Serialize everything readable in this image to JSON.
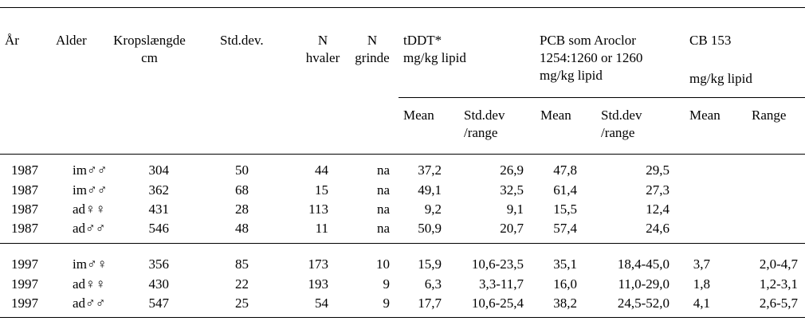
{
  "header": {
    "year": "År",
    "age": "Alder",
    "body_length_line1": "Kropslængde",
    "body_length_line2": "cm",
    "std_dev": "Std.dev.",
    "n_whales_line1": "N",
    "n_whales_line2": "hvaler",
    "n_pods_line1": "N",
    "n_pods_line2": "grinde",
    "tddt_line1": "tDDT*",
    "tddt_line2": "mg/kg lipid",
    "pcb_line1": "PCB som Aroclor",
    "pcb_line2": "1254:1260 or 1260",
    "pcb_line3": "mg/kg lipid",
    "cb153_line1": "CB 153",
    "cb153_line2": "mg/kg lipid"
  },
  "subheader": {
    "tddt_mean": "Mean",
    "tddt_sd_line1": "Std.dev",
    "tddt_sd_line2": "/range",
    "pcb_mean": "Mean",
    "pcb_sd_line1": "Std.dev",
    "pcb_sd_line2": "/range",
    "cb_mean": "Mean",
    "cb_range": "Range"
  },
  "rows": [
    {
      "year": "1987",
      "age": "im♂♂",
      "length": "304",
      "sd": "50",
      "n_whales": "44",
      "n_pods": "na",
      "tddt_mean": "37,2",
      "tddt_sd": "26,9",
      "pcb_mean": "47,8",
      "pcb_sd": "29,5",
      "cb_mean": "",
      "cb_range": ""
    },
    {
      "year": "1987",
      "age": "im♂♂",
      "length": "362",
      "sd": "68",
      "n_whales": "15",
      "n_pods": "na",
      "tddt_mean": "49,1",
      "tddt_sd": "32,5",
      "pcb_mean": "61,4",
      "pcb_sd": "27,3",
      "cb_mean": "",
      "cb_range": ""
    },
    {
      "year": "1987",
      "age": "ad♀♀",
      "length": "431",
      "sd": "28",
      "n_whales": "113",
      "n_pods": "na",
      "tddt_mean": "9,2",
      "tddt_sd": "9,1",
      "pcb_mean": "15,5",
      "pcb_sd": "12,4",
      "cb_mean": "",
      "cb_range": ""
    },
    {
      "year": "1987",
      "age": "ad♂♂",
      "length": "546",
      "sd": "48",
      "n_whales": "11",
      "n_pods": "na",
      "tddt_mean": "50,9",
      "tddt_sd": "20,7",
      "pcb_mean": "57,4",
      "pcb_sd": "24,6",
      "cb_mean": "",
      "cb_range": ""
    },
    {
      "year": "1997",
      "age": "im♂♀",
      "length": "356",
      "sd": "85",
      "n_whales": "173",
      "n_pods": "10",
      "tddt_mean": "15,9",
      "tddt_sd": "10,6-23,5",
      "pcb_mean": "35,1",
      "pcb_sd": "18,4-45,0",
      "cb_mean": "3,7",
      "cb_range": "2,0-4,7"
    },
    {
      "year": "1997",
      "age": "ad♀♀",
      "length": "430",
      "sd": "22",
      "n_whales": "193",
      "n_pods": "9",
      "tddt_mean": "6,3",
      "tddt_sd": "3,3-11,7",
      "pcb_mean": "16,0",
      "pcb_sd": "11,0-29,0",
      "cb_mean": "1,8",
      "cb_range": "1,2-3,1"
    },
    {
      "year": "1997",
      "age": "ad♂♂",
      "length": "547",
      "sd": "25",
      "n_whales": "54",
      "n_pods": "9",
      "tddt_mean": "17,7",
      "tddt_sd": "10,6-25,4",
      "pcb_mean": "38,2",
      "pcb_sd": "24,5-52,0",
      "cb_mean": "4,1",
      "cb_range": "2,6-5,7"
    }
  ]
}
